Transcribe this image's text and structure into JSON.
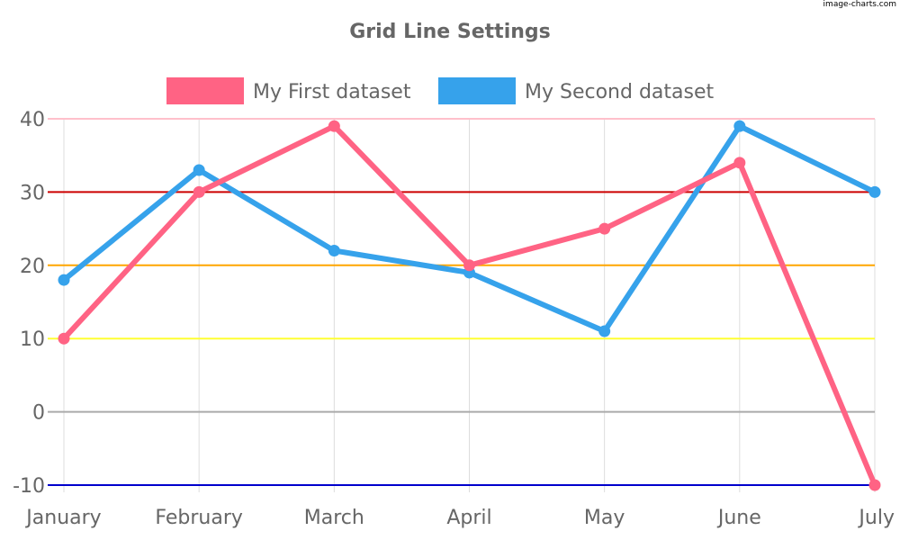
{
  "watermark": "image-charts.com",
  "chart_data": {
    "type": "line",
    "title": "Grid Line Settings",
    "categories": [
      "January",
      "February",
      "March",
      "April",
      "May",
      "June",
      "July"
    ],
    "series": [
      {
        "name": "My First dataset",
        "color": "#ff6384",
        "values": [
          10,
          30,
          39,
          20,
          25,
          34,
          -10
        ]
      },
      {
        "name": "My Second dataset",
        "color": "#36a2eb",
        "values": [
          18,
          33,
          22,
          19,
          11,
          39,
          30
        ]
      }
    ],
    "ylim": [
      -10,
      40
    ],
    "yticks": [
      -10,
      0,
      10,
      20,
      30,
      40
    ],
    "ytick_labels": [
      "-10",
      "0",
      "10",
      "20",
      "30",
      "40"
    ],
    "grid_line_colors": {
      "-10": "#0000cc",
      "0": "#aaaaaa",
      "10": "#ffff33",
      "20": "#ffa500",
      "30": "#cc0000",
      "40": "#ffc0cb"
    },
    "vertical_grid_color": "#dddddd",
    "legend_position": "top",
    "xlabel": "",
    "ylabel": ""
  }
}
